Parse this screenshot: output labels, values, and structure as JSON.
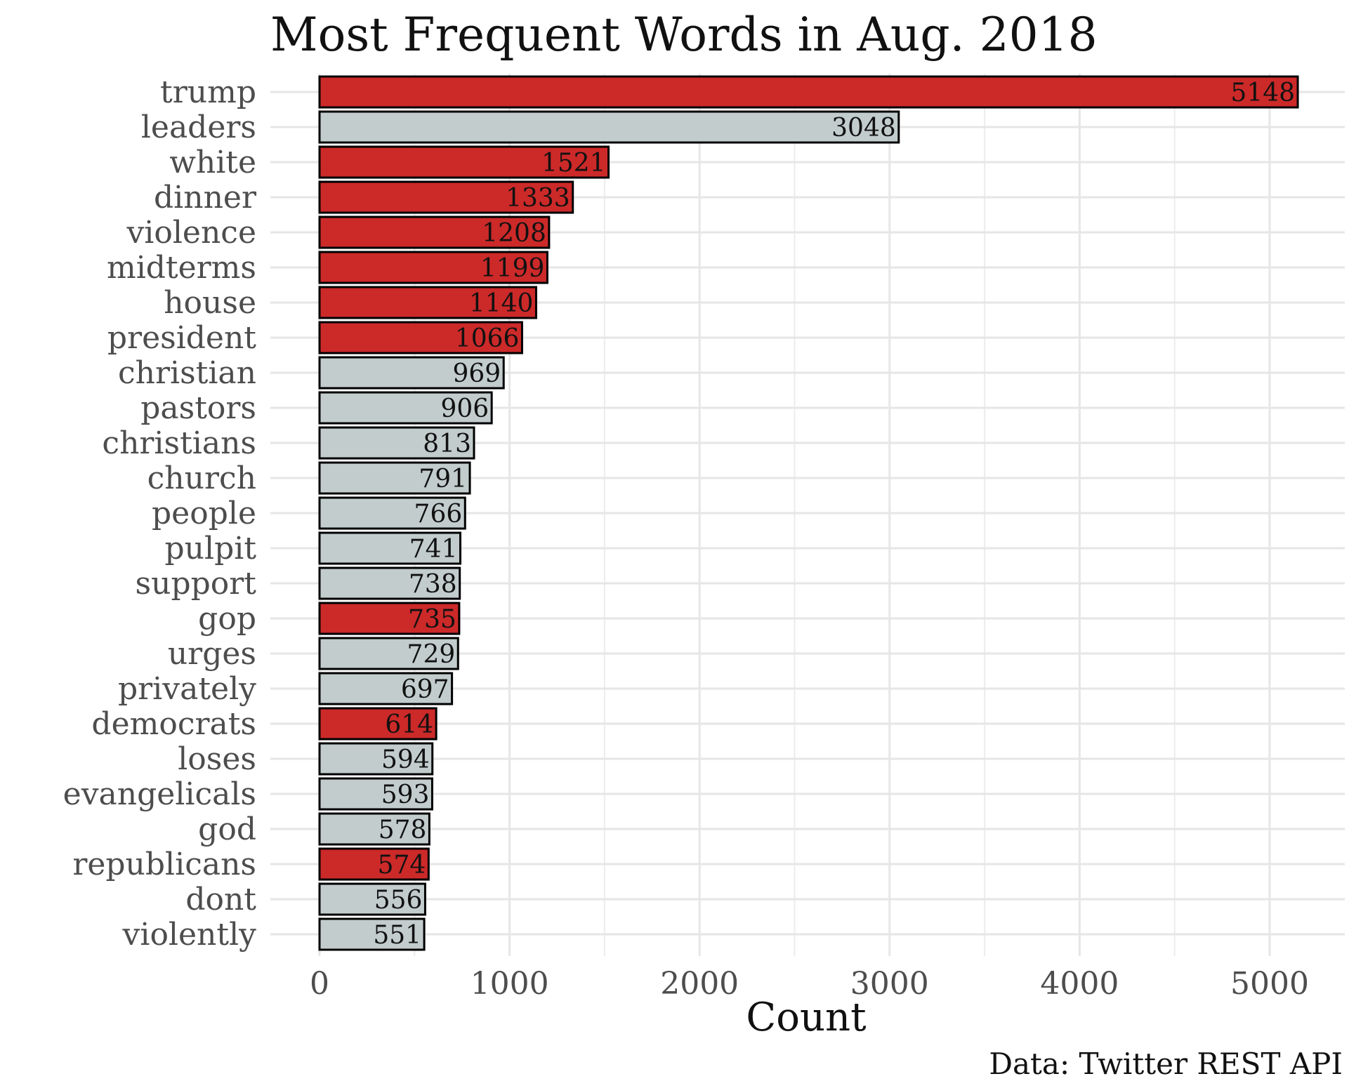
{
  "colors": {
    "highlight": "#cc2929",
    "neutral": "#c2cccc",
    "grid": "#e6e6e6"
  },
  "chart_data": {
    "type": "bar",
    "orientation": "horizontal",
    "title": "Most Frequent Words in Aug. 2018",
    "xlabel": "Count",
    "ylabel": "",
    "caption": "Data: Twitter REST API",
    "xlim": [
      0,
      5200
    ],
    "xticks": [
      0,
      1000,
      2000,
      3000,
      4000,
      5000
    ],
    "grid": true,
    "legend": "none",
    "categories": [
      "trump",
      "leaders",
      "white",
      "dinner",
      "violence",
      "midterms",
      "house",
      "president",
      "christian",
      "pastors",
      "christians",
      "church",
      "people",
      "pulpit",
      "support",
      "gop",
      "urges",
      "privately",
      "democrats",
      "loses",
      "evangelicals",
      "god",
      "republicans",
      "dont",
      "violently"
    ],
    "values": [
      5148,
      3048,
      1521,
      1333,
      1208,
      1199,
      1140,
      1066,
      969,
      906,
      813,
      791,
      766,
      741,
      738,
      735,
      729,
      697,
      614,
      594,
      593,
      578,
      574,
      556,
      551
    ],
    "highlight": [
      true,
      false,
      true,
      true,
      true,
      true,
      true,
      true,
      false,
      false,
      false,
      false,
      false,
      false,
      false,
      true,
      false,
      false,
      true,
      false,
      false,
      false,
      true,
      false,
      false
    ]
  }
}
